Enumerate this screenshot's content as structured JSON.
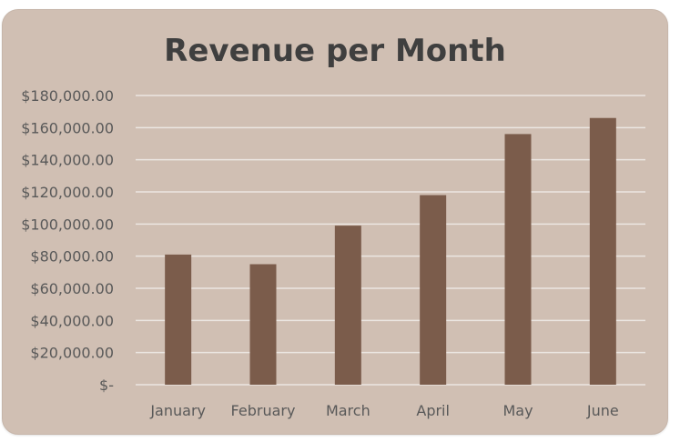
{
  "chart_data": {
    "type": "bar",
    "title": "Revenue per Month",
    "categories": [
      "January",
      "February",
      "March",
      "April",
      "May",
      "June"
    ],
    "values": [
      81000,
      75000,
      99000,
      118000,
      156000,
      166000
    ],
    "ylim": [
      0,
      180000
    ],
    "yticks": [
      0,
      20000,
      40000,
      60000,
      80000,
      100000,
      120000,
      140000,
      160000,
      180000
    ],
    "ytick_labels": [
      "$-",
      "$20,000.00",
      "$40,000.00",
      "$60,000.00",
      "$80,000.00",
      "$100,000.00",
      "$120,000.00",
      "$140,000.00",
      "$160,000.00",
      "$180,000.00"
    ],
    "grid": true,
    "legend": "none",
    "colors": {
      "bar": "#7b5c4b",
      "background": "#d0bfb3",
      "gridline": "#ece6e2",
      "title": "#3f3f3f",
      "labels": "#595959"
    }
  }
}
